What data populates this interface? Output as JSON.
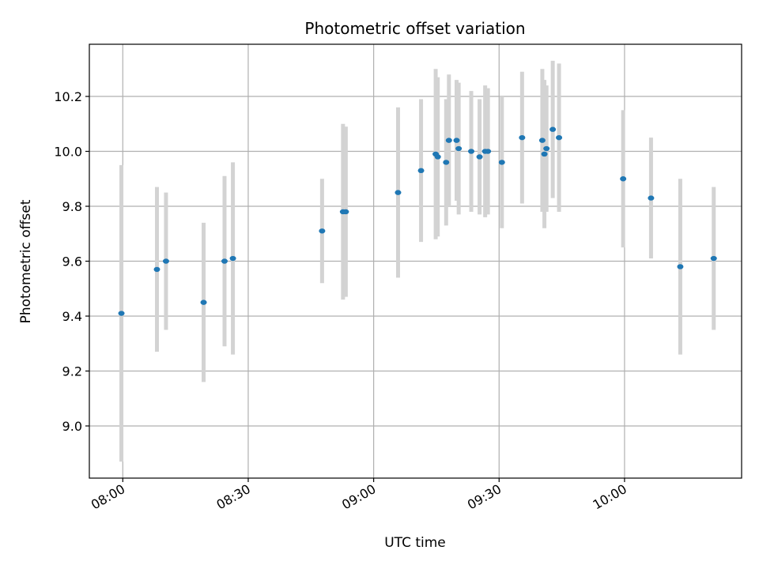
{
  "chart_data": {
    "type": "scatter",
    "title": "Photometric offset variation",
    "xlabel": "UTC time",
    "ylabel": "Photometric offset",
    "x_ticks": [
      "08:00",
      "08:30",
      "09:00",
      "09:30",
      "10:00"
    ],
    "y_ticks": [
      "9.0",
      "9.2",
      "9.4",
      "9.6",
      "9.8",
      "10.0",
      "10.2"
    ],
    "xlim": [
      "07:52",
      "10:28"
    ],
    "ylim": [
      8.81,
      10.39
    ],
    "grid": true,
    "colors": {
      "marker": "#1f77b4",
      "errorbar": "#d3d3d3",
      "grid": "#b0b0b0"
    },
    "points": [
      {
        "time": "07:59:40",
        "y": 9.41,
        "err": 0.54
      },
      {
        "time": "08:08:10",
        "y": 9.57,
        "err": 0.3
      },
      {
        "time": "08:10:20",
        "y": 9.6,
        "err": 0.25
      },
      {
        "time": "08:19:20",
        "y": 9.45,
        "err": 0.29
      },
      {
        "time": "08:24:20",
        "y": 9.6,
        "err": 0.31
      },
      {
        "time": "08:26:20",
        "y": 9.61,
        "err": 0.35
      },
      {
        "time": "08:47:40",
        "y": 9.71,
        "err": 0.19
      },
      {
        "time": "08:52:40",
        "y": 9.78,
        "err": 0.32
      },
      {
        "time": "08:53:20",
        "y": 9.78,
        "err": 0.31
      },
      {
        "time": "09:05:50",
        "y": 9.85,
        "err": 0.31
      },
      {
        "time": "09:11:20",
        "y": 9.93,
        "err": 0.26
      },
      {
        "time": "09:14:50",
        "y": 9.99,
        "err": 0.31
      },
      {
        "time": "09:15:20",
        "y": 9.98,
        "err": 0.29
      },
      {
        "time": "09:17:20",
        "y": 9.96,
        "err": 0.23
      },
      {
        "time": "09:18:00",
        "y": 10.04,
        "err": 0.24
      },
      {
        "time": "09:19:50",
        "y": 10.04,
        "err": 0.22
      },
      {
        "time": "09:20:20",
        "y": 10.01,
        "err": 0.24
      },
      {
        "time": "09:23:20",
        "y": 10.0,
        "err": 0.22
      },
      {
        "time": "09:25:20",
        "y": 9.98,
        "err": 0.21
      },
      {
        "time": "09:26:40",
        "y": 10.0,
        "err": 0.24
      },
      {
        "time": "09:27:20",
        "y": 10.0,
        "err": 0.23
      },
      {
        "time": "09:30:40",
        "y": 9.96,
        "err": 0.24
      },
      {
        "time": "09:35:30",
        "y": 10.05,
        "err": 0.24
      },
      {
        "time": "09:40:20",
        "y": 10.04,
        "err": 0.26
      },
      {
        "time": "09:40:50",
        "y": 9.99,
        "err": 0.27
      },
      {
        "time": "09:41:20",
        "y": 10.01,
        "err": 0.23
      },
      {
        "time": "09:42:50",
        "y": 10.08,
        "err": 0.25
      },
      {
        "time": "09:44:20",
        "y": 10.05,
        "err": 0.27
      },
      {
        "time": "09:59:40",
        "y": 9.9,
        "err": 0.25
      },
      {
        "time": "10:06:20",
        "y": 9.83,
        "err": 0.22
      },
      {
        "time": "10:13:20",
        "y": 9.58,
        "err": 0.32
      },
      {
        "time": "10:21:20",
        "y": 9.61,
        "err": 0.26
      }
    ]
  }
}
